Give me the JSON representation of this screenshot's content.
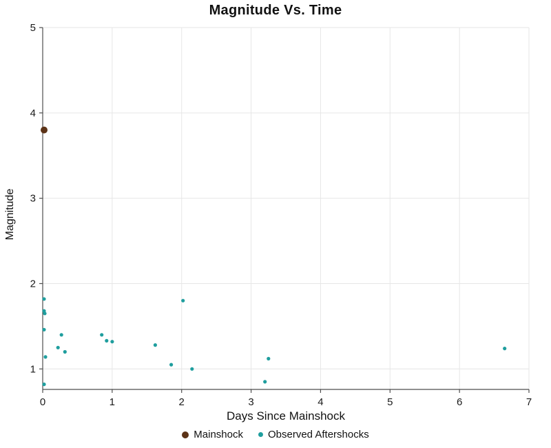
{
  "chart_data": {
    "type": "scatter",
    "title": "Magnitude Vs. Time",
    "xlabel": "Days Since Mainshock",
    "ylabel": "Magnitude",
    "xlim": [
      0,
      7
    ],
    "ylim": [
      0.76,
      5
    ],
    "x_ticks": [
      0,
      1,
      2,
      3,
      4,
      5,
      6,
      7
    ],
    "y_ticks": [
      1,
      2,
      3,
      4,
      5
    ],
    "grid": true,
    "legend_position": "bottom",
    "colors": {
      "gridline": "#e6e6e6",
      "axis": "#4d4d4d",
      "mainshock": "#5c3317",
      "aftershock": "#1f9e9e"
    },
    "series": [
      {
        "name": "Mainshock",
        "color": "#5c3317",
        "radius": 5,
        "points": [
          [
            0.02,
            3.8
          ]
        ]
      },
      {
        "name": "Observed Aftershocks",
        "color": "#1f9e9e",
        "radius": 2.6,
        "points": [
          [
            0.02,
            1.82
          ],
          [
            0.02,
            1.68
          ],
          [
            0.03,
            1.65
          ],
          [
            0.02,
            1.46
          ],
          [
            0.04,
            1.14
          ],
          [
            0.02,
            0.82
          ],
          [
            0.22,
            1.25
          ],
          [
            0.27,
            1.4
          ],
          [
            0.32,
            1.2
          ],
          [
            0.85,
            1.4
          ],
          [
            0.92,
            1.33
          ],
          [
            1.0,
            1.32
          ],
          [
            1.62,
            1.28
          ],
          [
            1.85,
            1.05
          ],
          [
            2.02,
            1.8
          ],
          [
            2.15,
            1.0
          ],
          [
            3.2,
            0.85
          ],
          [
            3.25,
            1.12
          ],
          [
            6.65,
            1.24
          ]
        ]
      }
    ]
  }
}
